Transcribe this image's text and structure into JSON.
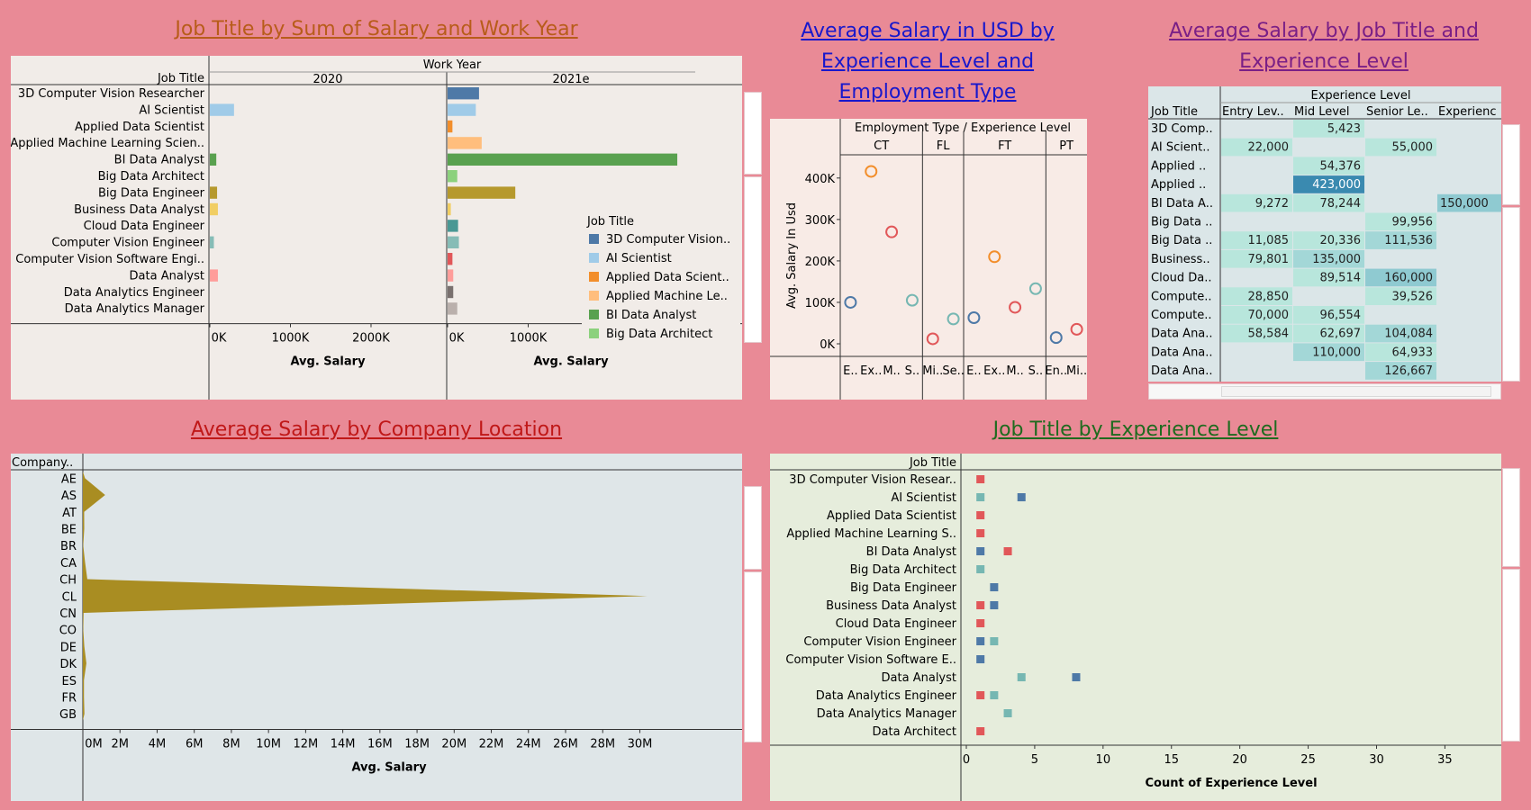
{
  "titles": {
    "p1": "Job Title by Sum of Salary and Work Year",
    "p2": "Average Salary in USD by Experience Level and Employment Type",
    "p3": "Average Salary by Job Title and Experience Level",
    "p4": "Average Salary by Company Location",
    "p5": "Job Title by Experience Level"
  },
  "colors": {
    "page_bg": "#e98a96",
    "p1_title": "#b85c1a",
    "p2_title": "#1818cc",
    "p3_title": "#7a1f86",
    "p4_title": "#c01818",
    "p5_title": "#1f6b1f"
  },
  "chart_data": [
    {
      "id": "p1",
      "type": "bar",
      "orientation": "horizontal",
      "row_header": "Job Title",
      "column_header": "Work Year",
      "columns": [
        "2020",
        "2021e"
      ],
      "categories": [
        "3D Computer Vision Researcher",
        "AI Scientist",
        "Applied Data Scientist",
        "Applied Machine Learning Scien..",
        "BI Data Analyst",
        "Big Data Architect",
        "Big Data Engineer",
        "Business Data Analyst",
        "Cloud Data Engineer",
        "Computer Vision Engineer",
        "Computer Vision Software Engi..",
        "Data Analyst",
        "Data Analytics Engineer",
        "Data Analytics Manager"
      ],
      "series": [
        {
          "name": "2020",
          "values": [
            0,
            300000,
            0,
            0,
            80000,
            0,
            90000,
            100000,
            0,
            50000,
            0,
            100000,
            0,
            0
          ]
        },
        {
          "name": "2021e",
          "values": [
            390000,
            350000,
            60000,
            423000,
            2850000,
            120000,
            840000,
            40000,
            130000,
            140000,
            60000,
            70000,
            70000,
            120000
          ]
        }
      ],
      "bar_colors": [
        "#4e79a7",
        "#a0cbe8",
        "#f28e2b",
        "#ffbe7d",
        "#59a14f",
        "#8cd17d",
        "#b6992d",
        "#f1ce63",
        "#499894",
        "#86bcb6",
        "#e15759",
        "#ff9d9a",
        "#79706e",
        "#bab0ac"
      ],
      "xlabel": "Avg. Salary",
      "xticks": [
        "0K",
        "1000K",
        "2000K"
      ],
      "xtick_values": [
        0,
        1000000,
        2000000
      ],
      "xlim": [
        0,
        2950000
      ],
      "legend_title": "Job Title",
      "legend": [
        {
          "label": "3D Computer Vision..",
          "color": "#4e79a7"
        },
        {
          "label": "AI Scientist",
          "color": "#a0cbe8"
        },
        {
          "label": "Applied Data Scient..",
          "color": "#f28e2b"
        },
        {
          "label": "Applied Machine Le..",
          "color": "#ffbe7d"
        },
        {
          "label": "BI Data Analyst",
          "color": "#59a14f"
        },
        {
          "label": "Big Data Architect",
          "color": "#8cd17d"
        }
      ]
    },
    {
      "id": "p2",
      "type": "scatter",
      "header": "Employment Type  /  Experience Level",
      "ylabel": "Avg. Salary In Usd",
      "yticks": [
        "0K",
        "100K",
        "200K",
        "300K",
        "400K"
      ],
      "ytick_values": [
        0,
        100000,
        200000,
        300000,
        400000
      ],
      "ylim": [
        0,
        430000
      ],
      "groups": [
        {
          "name": "CT",
          "levels": [
            "E..",
            "Ex..",
            "M..",
            "S.."
          ],
          "points": [
            {
              "level": "E..",
              "y": 100000,
              "color": "#4e79a7"
            },
            {
              "level": "Ex..",
              "y": 416000,
              "color": "#f28e2b"
            },
            {
              "level": "M..",
              "y": 270000,
              "color": "#e15759"
            },
            {
              "level": "S..",
              "y": 105000,
              "color": "#76b7b2"
            }
          ]
        },
        {
          "name": "FL",
          "levels": [
            "Mi..",
            "Se.."
          ],
          "points": [
            {
              "level": "Mi..",
              "y": 12000,
              "color": "#e15759"
            },
            {
              "level": "Se..",
              "y": 60000,
              "color": "#76b7b2"
            }
          ]
        },
        {
          "name": "FT",
          "levels": [
            "E..",
            "Ex..",
            "M..",
            "S.."
          ],
          "points": [
            {
              "level": "E..",
              "y": 63000,
              "color": "#4e79a7"
            },
            {
              "level": "Ex..",
              "y": 210000,
              "color": "#f28e2b"
            },
            {
              "level": "M..",
              "y": 88000,
              "color": "#e15759"
            },
            {
              "level": "S..",
              "y": 133000,
              "color": "#76b7b2"
            }
          ]
        },
        {
          "name": "PT",
          "levels": [
            "En..",
            "Mi.."
          ],
          "points": [
            {
              "level": "En..",
              "y": 15000,
              "color": "#4e79a7"
            },
            {
              "level": "Mi..",
              "y": 35000,
              "color": "#e15759"
            }
          ]
        }
      ]
    },
    {
      "id": "p3",
      "type": "heatmap",
      "column_header": "Experience Level",
      "row_header": "Job Title",
      "columns": [
        "Entry Lev..",
        "Mid Level",
        "Senior Le..",
        "Experienc"
      ],
      "rows": [
        {
          "label": "3D Comp..",
          "values": [
            "",
            "5,423",
            "",
            ""
          ]
        },
        {
          "label": "AI Scient..",
          "values": [
            "22,000",
            "",
            "55,000",
            ""
          ]
        },
        {
          "label": "Applied ..",
          "values": [
            "",
            "54,376",
            "",
            ""
          ]
        },
        {
          "label": "Applied ..",
          "values": [
            "",
            "423,000",
            "",
            ""
          ]
        },
        {
          "label": "BI Data A..",
          "values": [
            "9,272",
            "78,244",
            "",
            "150,000"
          ]
        },
        {
          "label": "Big Data ..",
          "values": [
            "",
            "",
            "99,956",
            ""
          ]
        },
        {
          "label": "Big Data ..",
          "values": [
            "11,085",
            "20,336",
            "111,536",
            ""
          ]
        },
        {
          "label": "Business..",
          "values": [
            "79,801",
            "135,000",
            "",
            ""
          ]
        },
        {
          "label": "Cloud Da..",
          "values": [
            "",
            "89,514",
            "160,000",
            ""
          ]
        },
        {
          "label": "Compute..",
          "values": [
            "28,850",
            "",
            "39,526",
            ""
          ]
        },
        {
          "label": "Compute..",
          "values": [
            "70,000",
            "96,554",
            "",
            ""
          ]
        },
        {
          "label": "Data Ana..",
          "values": [
            "58,584",
            "62,697",
            "104,084",
            ""
          ]
        },
        {
          "label": "Data Ana..",
          "values": [
            "",
            "110,000",
            "64,933",
            ""
          ]
        },
        {
          "label": "Data Ana..",
          "values": [
            "",
            "",
            "126,667",
            ""
          ]
        }
      ]
    },
    {
      "id": "p4",
      "type": "area",
      "row_header": "Company..",
      "categories": [
        "AE",
        "AS",
        "AT",
        "BE",
        "BR",
        "CA",
        "CH",
        "CL",
        "CN",
        "CO",
        "DE",
        "DK",
        "ES",
        "FR",
        "GB"
      ],
      "values": [
        115000,
        1200000,
        70000,
        75000,
        20000,
        120000,
        240000,
        30400000,
        40000,
        21000,
        80000,
        190000,
        60000,
        60000,
        85000
      ],
      "xlabel": "Avg. Salary",
      "xticks": [
        "0M",
        "2M",
        "4M",
        "6M",
        "8M",
        "10M",
        "12M",
        "14M",
        "16M",
        "18M",
        "20M",
        "22M",
        "24M",
        "26M",
        "28M",
        "30M"
      ],
      "xtick_values": [
        0,
        2000000,
        4000000,
        6000000,
        8000000,
        10000000,
        12000000,
        14000000,
        16000000,
        18000000,
        20000000,
        22000000,
        24000000,
        26000000,
        28000000,
        30000000
      ],
      "xlim": [
        0,
        32500000
      ],
      "color": "#a98d22"
    },
    {
      "id": "p5",
      "type": "scatter",
      "row_header": "Job Title",
      "categories": [
        "3D Computer Vision Resear..",
        "AI Scientist",
        "Applied Data Scientist",
        "Applied Machine Learning S..",
        "BI Data Analyst",
        "Big Data Architect",
        "Big Data Engineer",
        "Business Data Analyst",
        "Cloud Data Engineer",
        "Computer Vision Engineer",
        "Computer Vision Software E..",
        "Data Analyst",
        "Data Analytics Engineer",
        "Data Analytics Manager",
        "Data Architect"
      ],
      "points": [
        {
          "row": 0,
          "x": 1,
          "color": "#e15759"
        },
        {
          "row": 1,
          "x": 1,
          "color": "#76b7b2"
        },
        {
          "row": 1,
          "x": 4,
          "color": "#4e79a7"
        },
        {
          "row": 2,
          "x": 1,
          "color": "#e15759"
        },
        {
          "row": 3,
          "x": 1,
          "color": "#e15759"
        },
        {
          "row": 4,
          "x": 1,
          "color": "#4e79a7"
        },
        {
          "row": 4,
          "x": 3,
          "color": "#e15759"
        },
        {
          "row": 5,
          "x": 1,
          "color": "#76b7b2"
        },
        {
          "row": 6,
          "x": 2,
          "color": "#4e79a7"
        },
        {
          "row": 7,
          "x": 1,
          "color": "#e15759"
        },
        {
          "row": 7,
          "x": 2,
          "color": "#4e79a7"
        },
        {
          "row": 8,
          "x": 1,
          "color": "#e15759"
        },
        {
          "row": 9,
          "x": 1,
          "color": "#4e79a7"
        },
        {
          "row": 9,
          "x": 2,
          "color": "#76b7b2"
        },
        {
          "row": 10,
          "x": 1,
          "color": "#4e79a7"
        },
        {
          "row": 11,
          "x": 4,
          "color": "#76b7b2"
        },
        {
          "row": 11,
          "x": 8,
          "color": "#4e79a7"
        },
        {
          "row": 12,
          "x": 1,
          "color": "#e15759"
        },
        {
          "row": 12,
          "x": 2,
          "color": "#76b7b2"
        },
        {
          "row": 13,
          "x": 3,
          "color": "#76b7b2"
        },
        {
          "row": 14,
          "x": 1,
          "color": "#e15759"
        }
      ],
      "xlabel": "Count of Experience Level",
      "xticks": [
        "0",
        "5",
        "10",
        "15",
        "20",
        "25",
        "30",
        "35"
      ],
      "xtick_values": [
        0,
        5,
        10,
        15,
        20,
        25,
        30,
        35
      ],
      "xlim": [
        0,
        38.2
      ]
    }
  ]
}
